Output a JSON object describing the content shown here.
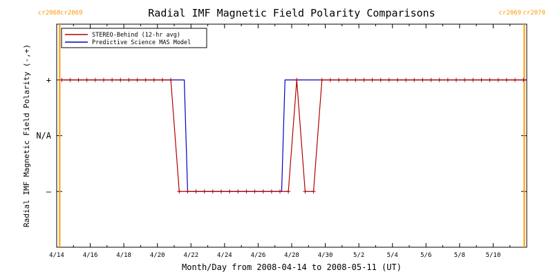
{
  "chart_data": {
    "type": "line",
    "title": "Radial IMF Magnetic Field Polarity Comparisons",
    "xlabel": "Month/Day from 2008-04-14 to 2008-05-11 (UT)",
    "ylabel": "Radial IMF Magnetic Field Polarity (-,+)",
    "x_range_days": [
      0,
      28
    ],
    "x_ticks": [
      {
        "day": 0,
        "label": "4/14"
      },
      {
        "day": 2,
        "label": "4/16"
      },
      {
        "day": 4,
        "label": "4/18"
      },
      {
        "day": 6,
        "label": "4/20"
      },
      {
        "day": 8,
        "label": "4/22"
      },
      {
        "day": 10,
        "label": "4/24"
      },
      {
        "day": 12,
        "label": "4/26"
      },
      {
        "day": 14,
        "label": "4/28"
      },
      {
        "day": 16,
        "label": "4/30"
      },
      {
        "day": 18,
        "label": "5/2"
      },
      {
        "day": 20,
        "label": "5/4"
      },
      {
        "day": 22,
        "label": "5/6"
      },
      {
        "day": 24,
        "label": "5/8"
      },
      {
        "day": 26,
        "label": "5/10"
      }
    ],
    "y_ticks": [
      {
        "value": 1,
        "label": "+"
      },
      {
        "value": 0,
        "label": "N/A"
      },
      {
        "value": -1,
        "label": "–"
      }
    ],
    "ylim": [
      -2,
      2
    ],
    "legend_position": "top-left",
    "series": [
      {
        "name": "STEREO-Behind (12-hr avg)",
        "color": "#b00000",
        "markers": true,
        "points": [
          [
            0.3,
            1
          ],
          [
            0.8,
            1
          ],
          [
            1.3,
            1
          ],
          [
            1.8,
            1
          ],
          [
            2.3,
            1
          ],
          [
            2.8,
            1
          ],
          [
            3.3,
            1
          ],
          [
            3.8,
            1
          ],
          [
            4.3,
            1
          ],
          [
            4.8,
            1
          ],
          [
            5.3,
            1
          ],
          [
            5.8,
            1
          ],
          [
            6.3,
            1
          ],
          [
            6.8,
            1
          ],
          [
            7.3,
            -1
          ],
          [
            7.8,
            -1
          ],
          [
            8.3,
            -1
          ],
          [
            8.8,
            -1
          ],
          [
            9.3,
            -1
          ],
          [
            9.8,
            -1
          ],
          [
            10.3,
            -1
          ],
          [
            10.8,
            -1
          ],
          [
            11.3,
            -1
          ],
          [
            11.8,
            -1
          ],
          [
            12.3,
            -1
          ],
          [
            12.8,
            -1
          ],
          [
            13.3,
            -1
          ],
          [
            13.8,
            -1
          ],
          [
            14.3,
            1
          ],
          [
            14.8,
            -1
          ],
          [
            15.3,
            -1
          ],
          [
            15.8,
            1
          ],
          [
            16.3,
            1
          ],
          [
            16.8,
            1
          ],
          [
            17.3,
            1
          ],
          [
            17.8,
            1
          ],
          [
            18.3,
            1
          ],
          [
            18.8,
            1
          ],
          [
            19.3,
            1
          ],
          [
            19.8,
            1
          ],
          [
            20.3,
            1
          ],
          [
            20.8,
            1
          ],
          [
            21.3,
            1
          ],
          [
            21.8,
            1
          ],
          [
            22.3,
            1
          ],
          [
            22.8,
            1
          ],
          [
            23.3,
            1
          ],
          [
            23.8,
            1
          ],
          [
            24.3,
            1
          ],
          [
            24.8,
            1
          ],
          [
            25.3,
            1
          ],
          [
            25.8,
            1
          ],
          [
            26.3,
            1
          ],
          [
            26.8,
            1
          ],
          [
            27.3,
            1
          ],
          [
            27.8,
            1
          ]
        ]
      },
      {
        "name": "Predictive Science MAS Model",
        "color": "#0000c0",
        "markers": false,
        "points": [
          [
            0.3,
            1
          ],
          [
            7.6,
            1
          ],
          [
            7.8,
            -1
          ],
          [
            13.4,
            -1
          ],
          [
            13.6,
            1
          ],
          [
            28,
            1
          ]
        ]
      }
    ],
    "carrington_rotations": [
      {
        "day": 0.18,
        "labels": [
          "cr2068",
          "cr2069"
        ],
        "side": "left"
      },
      {
        "day": 27.85,
        "labels": [
          "cr2069",
          "cr2070"
        ],
        "side": "right"
      }
    ],
    "rotation_line_color": "#ff9900"
  }
}
